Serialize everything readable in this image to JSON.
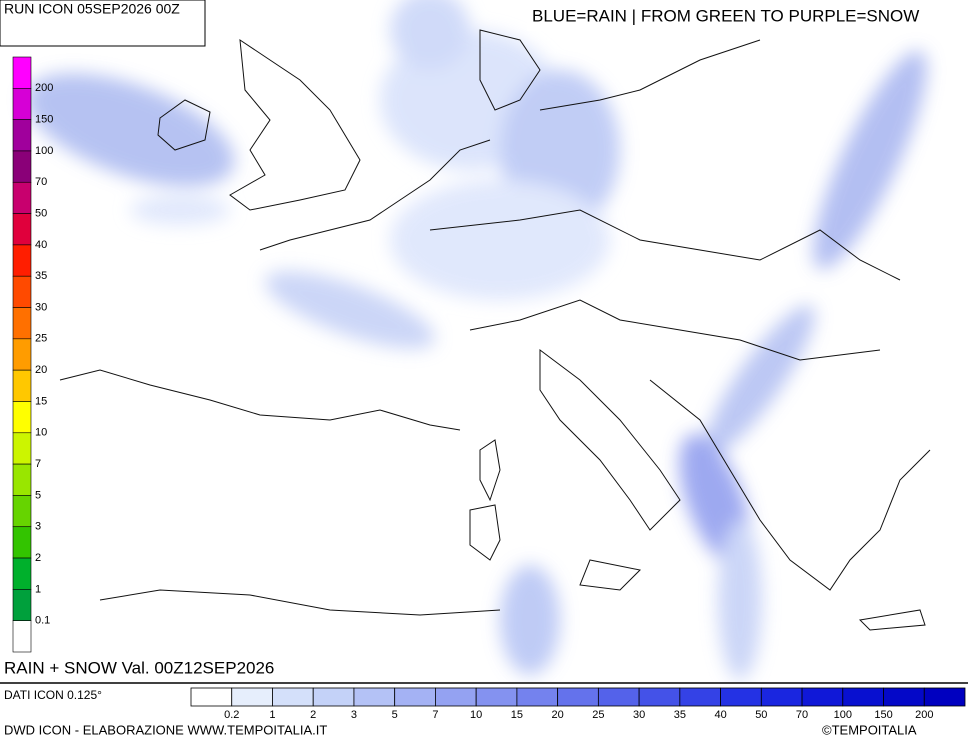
{
  "header": {
    "run": "RUN ICON 05SEP2026 00Z",
    "legend_note": "BLUE=RAIN | FROM GREEN TO PURPLE=SNOW",
    "validity": "RAIN + SNOW Val. 00Z12SEP2026"
  },
  "side_scale": {
    "labels": [
      200,
      150,
      100,
      70,
      50,
      40,
      35,
      30,
      25,
      20,
      15,
      10,
      7,
      5,
      3,
      2,
      1,
      0.1
    ],
    "colors": [
      "#ff00ff",
      "#d600d6",
      "#a0009c",
      "#8a0078",
      "#c8006e",
      "#e0003c",
      "#ff1e00",
      "#ff4a00",
      "#ff7000",
      "#ff9c00",
      "#ffc800",
      "#ffff00",
      "#ccf500",
      "#99e600",
      "#66d400",
      "#33c400",
      "#00b02c",
      "#00a03c",
      "#ffffff"
    ]
  },
  "bottom_scale": {
    "labels": [
      0.2,
      1,
      2,
      3,
      5,
      7,
      10,
      15,
      20,
      25,
      30,
      35,
      40,
      50,
      70,
      100,
      150,
      200
    ],
    "colors": [
      "#ffffff",
      "#e6eefc",
      "#d4e0fa",
      "#c4d2f8",
      "#b4c2f6",
      "#a4b2f4",
      "#94a2f2",
      "#8492f0",
      "#7482ee",
      "#6472ec",
      "#5462ea",
      "#4452e8",
      "#3442e6",
      "#2432e4",
      "#1a26e0",
      "#1018d8",
      "#0810d0",
      "#0408c8",
      "#0000c0"
    ]
  },
  "footer": {
    "data_source": "DATI ICON 0.125°",
    "credit": "DWD ICON - ELABORAZIONE WWW.TEMPOITALIA.IT",
    "copyright": "©TEMPOITALIA"
  }
}
